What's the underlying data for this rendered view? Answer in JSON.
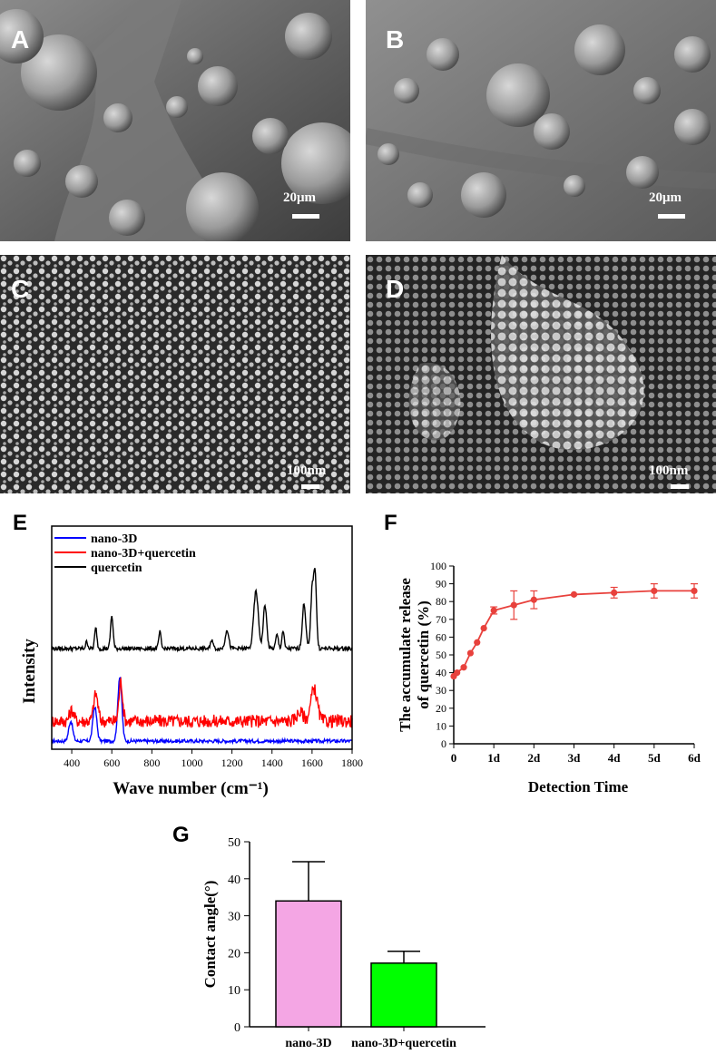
{
  "panels": {
    "A": {
      "letter": "A",
      "scale": "20μm"
    },
    "B": {
      "letter": "B",
      "scale": "20μm"
    },
    "C": {
      "letter": "C",
      "scale": "100nm"
    },
    "D": {
      "letter": "D",
      "scale": "100nm"
    },
    "E": {
      "letter": "E"
    },
    "F": {
      "letter": "F"
    },
    "G": {
      "letter": "G"
    }
  },
  "chart_data": [
    {
      "panel": "E",
      "type": "line",
      "xlabel": "Wave number (cm⁻¹)",
      "ylabel": "Intensity",
      "xlim": [
        300,
        1800
      ],
      "x_ticks": [
        "400",
        "600",
        "800",
        "1000",
        "1200",
        "1400",
        "1600",
        "1800"
      ],
      "legend_position": "top-left",
      "series": [
        {
          "name": "nano-3D",
          "color": "#0000ff",
          "peaks": [
            {
              "x": 395,
              "height": 0.17,
              "width": 14
            },
            {
              "x": 515,
              "height": 0.29,
              "width": 14
            },
            {
              "x": 640,
              "height": 0.55,
              "width": 14
            }
          ]
        },
        {
          "name": "nano-3D+quercetin",
          "color": "#ff0000",
          "peaks": [
            {
              "x": 400,
              "height": 0.1,
              "width": 15
            },
            {
              "x": 520,
              "height": 0.25,
              "width": 15
            },
            {
              "x": 645,
              "height": 0.36,
              "width": 13
            },
            {
              "x": 1540,
              "height": 0.08,
              "width": 25
            },
            {
              "x": 1610,
              "height": 0.3,
              "width": 22
            }
          ]
        },
        {
          "name": "quercetin",
          "color": "#000000",
          "peaks": [
            {
              "x": 475,
              "height": 0.05,
              "width": 8
            },
            {
              "x": 520,
              "height": 0.15,
              "width": 8
            },
            {
              "x": 600,
              "height": 0.24,
              "width": 9
            },
            {
              "x": 840,
              "height": 0.12,
              "width": 8
            },
            {
              "x": 1100,
              "height": 0.07,
              "width": 8
            },
            {
              "x": 1175,
              "height": 0.14,
              "width": 12
            },
            {
              "x": 1320,
              "height": 0.42,
              "width": 16
            },
            {
              "x": 1365,
              "height": 0.32,
              "width": 12
            },
            {
              "x": 1425,
              "height": 0.1,
              "width": 9
            },
            {
              "x": 1455,
              "height": 0.13,
              "width": 8
            },
            {
              "x": 1560,
              "height": 0.33,
              "width": 12
            },
            {
              "x": 1600,
              "height": 0.4,
              "width": 10
            },
            {
              "x": 1615,
              "height": 0.55,
              "width": 10
            }
          ]
        }
      ]
    },
    {
      "panel": "F",
      "type": "line",
      "xlabel": "Detection Time",
      "ylabel": "The accumulate release of quercetin (%)",
      "ylim": [
        0,
        100
      ],
      "y_ticks": [
        0,
        10,
        20,
        30,
        40,
        50,
        60,
        70,
        80,
        90,
        100
      ],
      "x_ticks": [
        {
          "day": 0,
          "label": "0"
        },
        {
          "day": 1,
          "label": "1d"
        },
        {
          "day": 2,
          "label": "2d"
        },
        {
          "day": 3,
          "label": "3d"
        },
        {
          "day": 4,
          "label": "4d"
        },
        {
          "day": 5,
          "label": "5d"
        },
        {
          "day": 6,
          "label": "6d"
        }
      ],
      "xlim": [
        0,
        6
      ],
      "color": "#e8413c",
      "series": [
        {
          "x": [
            0,
            0.083,
            0.25,
            0.417,
            0.583,
            0.75,
            1,
            1.5,
            2,
            3,
            4,
            5,
            6
          ],
          "y": [
            38,
            40,
            43,
            51,
            57,
            65,
            75,
            78,
            81,
            84,
            85,
            86,
            86
          ],
          "error": [
            1,
            1,
            1,
            1,
            1,
            1,
            2,
            8,
            5,
            1,
            3,
            4,
            4
          ]
        }
      ]
    },
    {
      "panel": "G",
      "type": "bar",
      "ylabel": "Contact angle(°)",
      "ylim": [
        0,
        50
      ],
      "y_ticks": [
        0,
        10,
        20,
        30,
        40,
        50
      ],
      "categories": [
        "nano-3D",
        "nano-3D+quercetin"
      ],
      "values": [
        34,
        17.2
      ],
      "errors": [
        10.6,
        3.2
      ],
      "colors": [
        "#f4a6e4",
        "#00ff00"
      ]
    }
  ]
}
